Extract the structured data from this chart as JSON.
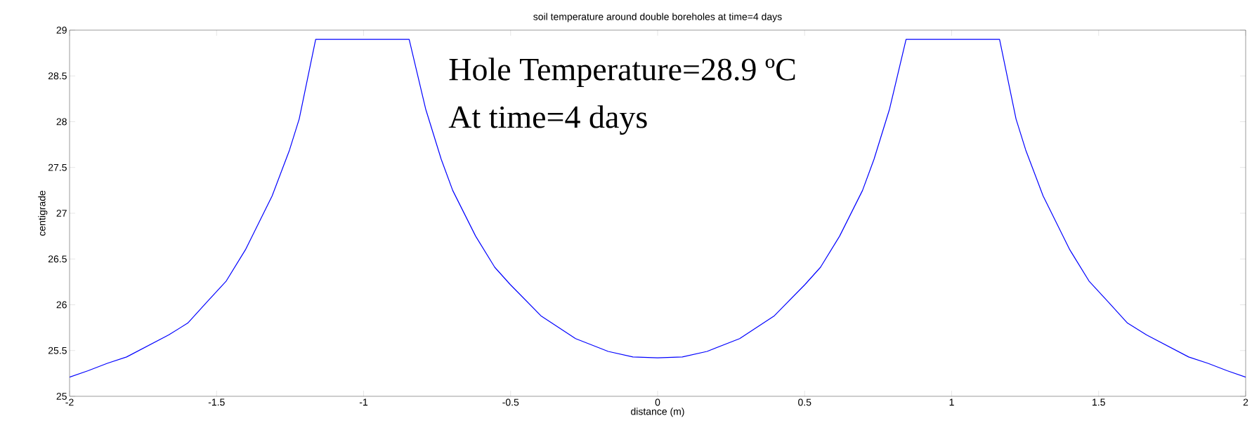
{
  "chart_data": {
    "type": "line",
    "title": "soil temperature around double boreholes at time=4 days",
    "xlabel": "distance (m)",
    "ylabel": "centigrade",
    "annotations": [
      "Hole Temperature=28.9 ºC",
      "At time=4 days"
    ],
    "x": [
      -2,
      -1.937,
      -1.872,
      -1.806,
      -1.663,
      -1.598,
      -1.533,
      -1.467,
      -1.402,
      -1.311,
      -1.252,
      -1.219,
      -1.163,
      -0.845,
      -0.789,
      -0.736,
      -0.697,
      -0.619,
      -0.554,
      -0.501,
      -0.397,
      -0.279,
      -0.168,
      -0.084,
      0,
      0.084,
      0.168,
      0.279,
      0.397,
      0.501,
      0.554,
      0.619,
      0.697,
      0.736,
      0.789,
      0.845,
      1.163,
      1.219,
      1.252,
      1.311,
      1.402,
      1.467,
      1.533,
      1.598,
      1.663,
      1.806,
      1.872,
      1.937,
      2
    ],
    "series": [
      {
        "color": "#0000ff",
        "values": [
          25.21,
          25.28,
          25.36,
          25.43,
          25.67,
          25.8,
          26.03,
          26.26,
          26.6,
          27.19,
          27.69,
          28.03,
          28.9,
          28.9,
          28.14,
          27.59,
          27.25,
          26.75,
          26.41,
          26.22,
          25.88,
          25.63,
          25.49,
          25.43,
          25.42,
          25.43,
          25.49,
          25.63,
          25.88,
          26.22,
          26.41,
          26.75,
          27.25,
          27.59,
          28.14,
          28.9,
          28.9,
          28.03,
          27.69,
          27.19,
          26.6,
          26.26,
          26.03,
          25.8,
          25.67,
          25.43,
          25.36,
          25.28,
          25.21
        ]
      }
    ],
    "xlim": [
      -2,
      2
    ],
    "ylim": [
      25,
      29
    ],
    "xticks": [
      -2,
      -1.5,
      -1,
      -0.5,
      0,
      0.5,
      1,
      1.5,
      2
    ],
    "yticks": [
      25,
      25.5,
      26,
      26.5,
      27,
      27.5,
      28,
      28.5,
      29
    ],
    "grid": false,
    "marker": "none",
    "line_style": "solid"
  }
}
